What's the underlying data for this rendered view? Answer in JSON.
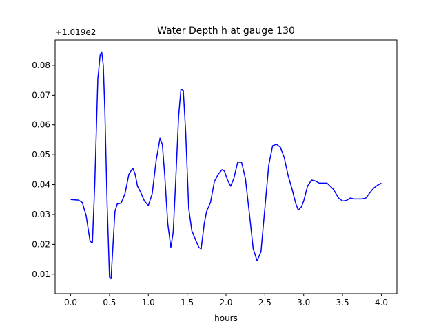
{
  "chart_data": {
    "type": "line",
    "title": "Water Depth h at gauge 130",
    "xlabel": "hours",
    "ylabel": "",
    "offset_label": "+1.019e2",
    "xlim": [
      -0.2,
      4.2
    ],
    "ylim": [
      0.0035,
      0.0885
    ],
    "xticks": [
      0.0,
      0.5,
      1.0,
      1.5,
      2.0,
      2.5,
      3.0,
      3.5,
      4.0
    ],
    "xtick_labels": [
      "0.0",
      "0.5",
      "1.0",
      "1.5",
      "2.0",
      "2.5",
      "3.0",
      "3.5",
      "4.0"
    ],
    "yticks": [
      0.01,
      0.02,
      0.03,
      0.04,
      0.05,
      0.06,
      0.07,
      0.08
    ],
    "ytick_labels": [
      "0.01",
      "0.02",
      "0.03",
      "0.04",
      "0.05",
      "0.06",
      "0.07",
      "0.08"
    ],
    "grid": false,
    "series": [
      {
        "color": "#0000ff",
        "x": [
          0.0,
          0.1,
          0.15,
          0.2,
          0.25,
          0.28,
          0.31,
          0.35,
          0.38,
          0.4,
          0.42,
          0.44,
          0.47,
          0.5,
          0.52,
          0.55,
          0.57,
          0.6,
          0.65,
          0.7,
          0.75,
          0.8,
          0.83,
          0.86,
          0.9,
          0.95,
          1.0,
          1.05,
          1.1,
          1.15,
          1.18,
          1.21,
          1.25,
          1.29,
          1.32,
          1.35,
          1.39,
          1.42,
          1.45,
          1.48,
          1.52,
          1.56,
          1.6,
          1.65,
          1.68,
          1.72,
          1.75,
          1.8,
          1.85,
          1.9,
          1.95,
          1.98,
          2.02,
          2.06,
          2.1,
          2.15,
          2.2,
          2.25,
          2.3,
          2.35,
          2.4,
          2.45,
          2.5,
          2.55,
          2.6,
          2.65,
          2.7,
          2.75,
          2.8,
          2.85,
          2.9,
          2.93,
          2.97,
          3.0,
          3.05,
          3.1,
          3.15,
          3.2,
          3.3,
          3.38,
          3.45,
          3.5,
          3.55,
          3.6,
          3.65,
          3.7,
          3.75,
          3.8,
          3.85,
          3.9,
          3.95,
          4.0
        ],
        "y": [
          0.035,
          0.0348,
          0.034,
          0.0295,
          0.021,
          0.0205,
          0.04,
          0.0755,
          0.0835,
          0.0845,
          0.08,
          0.065,
          0.033,
          0.009,
          0.0085,
          0.022,
          0.031,
          0.0335,
          0.0338,
          0.037,
          0.0435,
          0.0455,
          0.0435,
          0.0395,
          0.0375,
          0.0345,
          0.033,
          0.037,
          0.048,
          0.0555,
          0.0535,
          0.0435,
          0.027,
          0.019,
          0.024,
          0.04,
          0.063,
          0.072,
          0.0715,
          0.058,
          0.032,
          0.0245,
          0.022,
          0.019,
          0.0185,
          0.027,
          0.031,
          0.034,
          0.041,
          0.0435,
          0.045,
          0.0445,
          0.0415,
          0.0395,
          0.042,
          0.0475,
          0.0475,
          0.042,
          0.0305,
          0.0185,
          0.0145,
          0.0175,
          0.032,
          0.0465,
          0.053,
          0.0535,
          0.0525,
          0.049,
          0.043,
          0.0385,
          0.0335,
          0.0315,
          0.0325,
          0.0345,
          0.0395,
          0.0415,
          0.0412,
          0.0405,
          0.0405,
          0.0385,
          0.0355,
          0.0345,
          0.0347,
          0.0355,
          0.0352,
          0.0352,
          0.0352,
          0.0355,
          0.0372,
          0.0388,
          0.0398,
          0.0405
        ]
      }
    ]
  }
}
